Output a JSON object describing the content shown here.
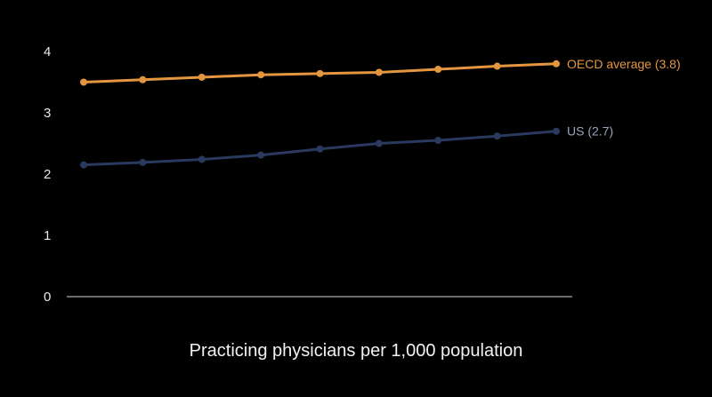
{
  "chart_data": {
    "type": "line",
    "title": "",
    "xlabel": "Practicing physicians per 1,000 population",
    "ylabel": "",
    "ylim": [
      0,
      4
    ],
    "yticks": [
      "0",
      "1",
      "2",
      "3",
      "4"
    ],
    "grid": false,
    "series": [
      {
        "label": "OECD average (3.8)",
        "color": "#e3963f",
        "values": [
          3.5,
          3.54,
          3.58,
          3.62,
          3.64,
          3.66,
          3.71,
          3.76,
          3.8
        ]
      },
      {
        "label": "US (2.7)",
        "color": "#2a3a5e",
        "label_color": "#9aa3bc",
        "values": [
          2.15,
          2.19,
          2.24,
          2.31,
          2.41,
          2.5,
          2.55,
          2.62,
          2.7
        ]
      }
    ]
  }
}
